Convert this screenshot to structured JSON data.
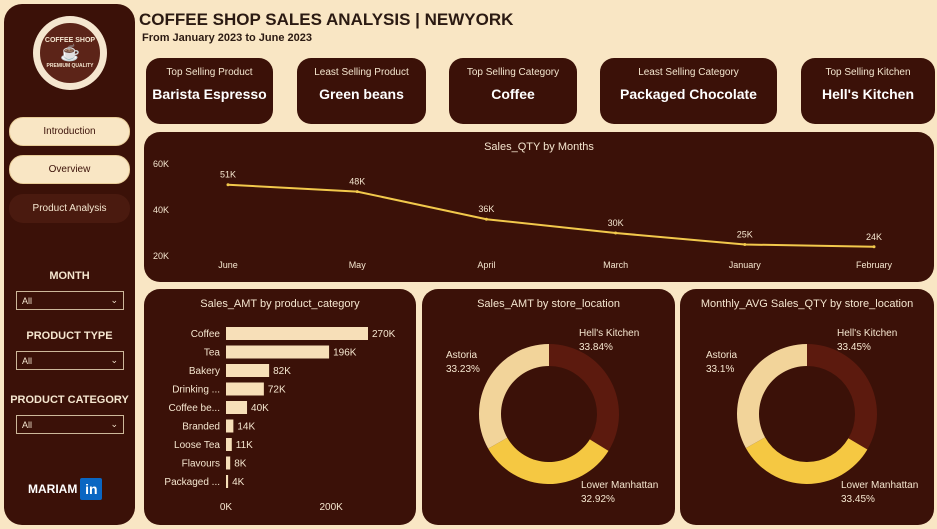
{
  "sidebar": {
    "logo_top": "COFFEE SHOP",
    "logo_bottom": "PREMIUM QUALITY",
    "nav": [
      "Introduction",
      "Overview",
      "Product Analysis"
    ],
    "filters": [
      {
        "label": "MONTH",
        "value": "All"
      },
      {
        "label": "PRODUCT TYPE",
        "value": "All"
      },
      {
        "label": "PRODUCT CATEGORY",
        "value": "All"
      }
    ],
    "brand": "MARIAM",
    "brand_icon": "in"
  },
  "header": {
    "title": "COFFEE SHOP SALES ANALYSIS | NEWYORK",
    "subtitle": "From January 2023 to June 2023"
  },
  "kpis": [
    {
      "label": "Top Selling Product",
      "value": "Barista Espresso"
    },
    {
      "label": "Least Selling Product",
      "value": "Green beans"
    },
    {
      "label": "Top Selling Category",
      "value": "Coffee"
    },
    {
      "label": "Least Selling Category",
      "value": "Packaged Chocolate"
    },
    {
      "label": "Top Selling Kitchen",
      "value": "Hell's Kitchen"
    }
  ],
  "colors": {
    "panel": "#3b1108",
    "background": "#f9e6c4",
    "line": "#f2c94c",
    "bar": "#f7dfb8",
    "donut": [
      "#5c1a0e",
      "#f5c842",
      "#f2d49a"
    ]
  },
  "chart_data": [
    {
      "type": "line",
      "title": "Sales_QTY by Months",
      "categories": [
        "June",
        "May",
        "April",
        "March",
        "January",
        "February"
      ],
      "values": [
        51000,
        48000,
        36000,
        30000,
        25000,
        24000
      ],
      "labels": [
        "51K",
        "48K",
        "36K",
        "30K",
        "25K",
        "24K"
      ],
      "yticks": [
        "60K",
        "40K",
        "20K"
      ],
      "ylim": [
        20000,
        60000
      ]
    },
    {
      "type": "bar",
      "orientation": "horizontal",
      "title": "Sales_AMT by product_category",
      "categories": [
        "Coffee",
        "Tea",
        "Bakery",
        "Drinking ...",
        "Coffee be...",
        "Branded",
        "Loose Tea",
        "Flavours",
        "Packaged ..."
      ],
      "values": [
        270000,
        196000,
        82000,
        72000,
        40000,
        14000,
        11000,
        8000,
        4000
      ],
      "labels": [
        "270K",
        "196K",
        "82K",
        "72K",
        "40K",
        "14K",
        "11K",
        "8K",
        "4K"
      ],
      "xticks": [
        "0K",
        "200K"
      ],
      "xlim": [
        0,
        270000
      ]
    },
    {
      "type": "pie",
      "title": "Sales_AMT by store_location",
      "slices": [
        {
          "name": "Hell's Kitchen",
          "value": 33.84,
          "label": "33.84%"
        },
        {
          "name": "Lower Manhattan",
          "value": 32.92,
          "label": "32.92%"
        },
        {
          "name": "Astoria",
          "value": 33.23,
          "label": "33.23%"
        }
      ]
    },
    {
      "type": "pie",
      "title": "Monthly_AVG Sales_QTY by store_location",
      "slices": [
        {
          "name": "Hell's Kitchen",
          "value": 33.45,
          "label": "33.45%"
        },
        {
          "name": "Lower Manhattan",
          "value": 33.45,
          "label": "33.45%"
        },
        {
          "name": "Astoria",
          "value": 33.1,
          "label": "33.1%"
        }
      ]
    }
  ]
}
